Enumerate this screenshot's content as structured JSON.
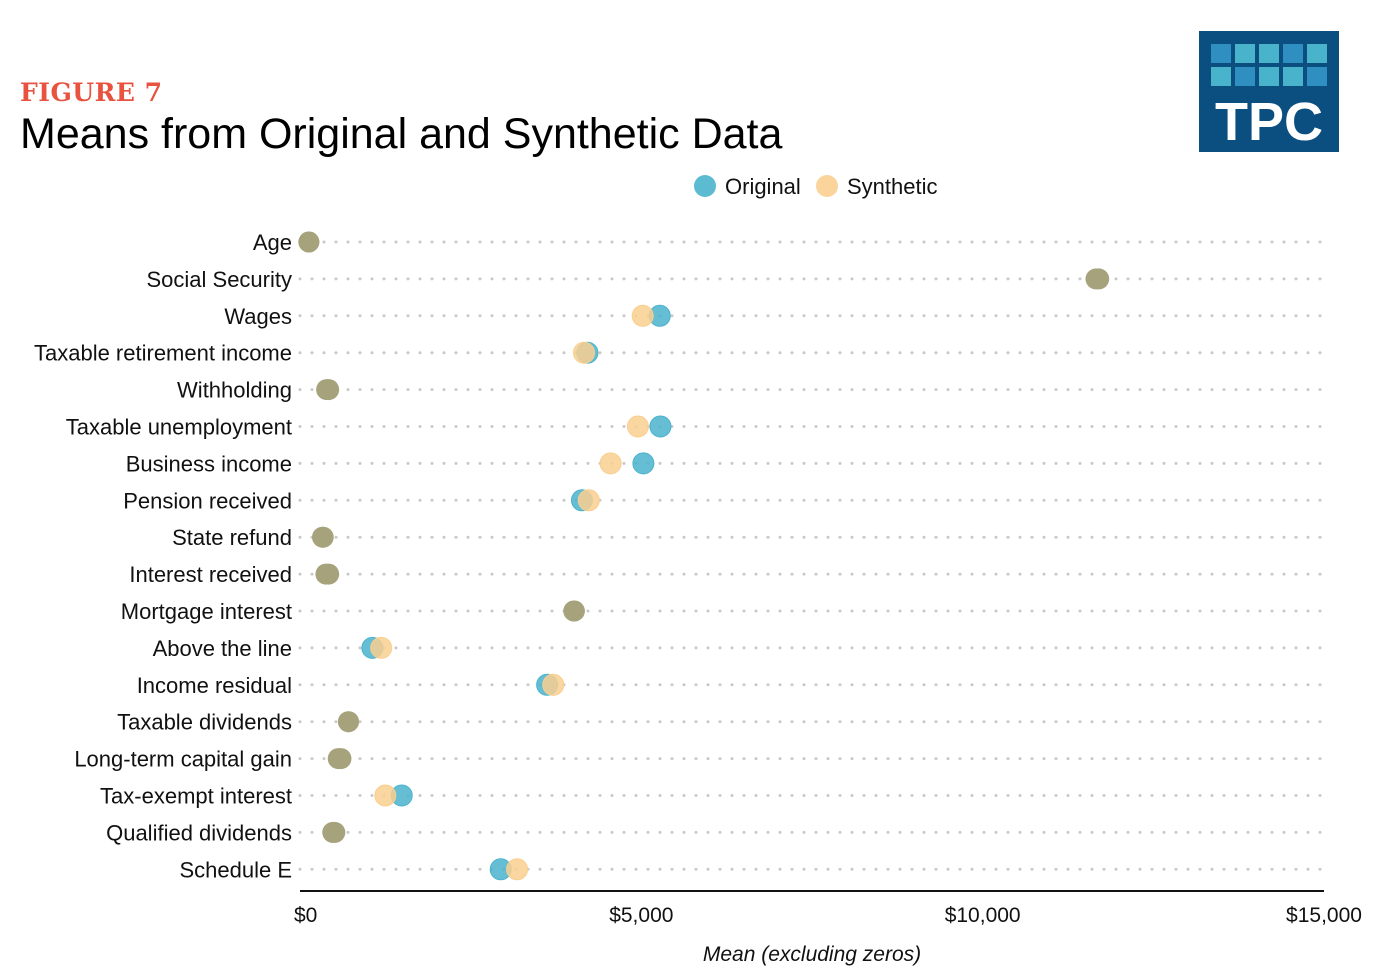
{
  "figure_label": "FIGURE 7",
  "title": "Means from Original and Synthetic Data",
  "logo_text": "TPC",
  "colors": {
    "original": "#4ab3cc",
    "synthetic": "#f9cf8f",
    "overlap": "#a6a27c",
    "figure_label": "#e8523f",
    "logo_bg": "#0b4f80"
  },
  "chart_data": {
    "type": "scatter",
    "title": "Means from Original and Synthetic Data",
    "xlabel": "Mean (excluding zeros)",
    "ylabel": "",
    "xlim": [
      0,
      15000
    ],
    "xticks": [
      0,
      5000,
      10000,
      15000
    ],
    "xtick_labels": [
      "$0",
      "$5,000",
      "$10,000",
      "$15,000"
    ],
    "legend_position": "top",
    "grid": "dotted horizontal",
    "categories": [
      "Age",
      "Social Security",
      "Wages",
      "Taxable retirement income",
      "Withholding",
      "Taxable unemployment",
      "Business income",
      "Pension received",
      "State refund",
      "Interest received",
      "Mortgage interest",
      "Above the line",
      "Income residual",
      "Taxable dividends",
      "Long-term capital gain",
      "Tax-exempt interest",
      "Qualified dividends",
      "Schedule E"
    ],
    "series": [
      {
        "name": "Original",
        "values": [
          130,
          11660,
          5270,
          4210,
          420,
          5280,
          5030,
          4130,
          340,
          420,
          4020,
          1060,
          3620,
          710,
          600,
          1490,
          480,
          2940
        ]
      },
      {
        "name": "Synthetic",
        "values": [
          130,
          11700,
          5020,
          4160,
          390,
          4950,
          4550,
          4230,
          330,
          380,
          4010,
          1190,
          3710,
          710,
          560,
          1250,
          510,
          3180
        ]
      }
    ]
  }
}
